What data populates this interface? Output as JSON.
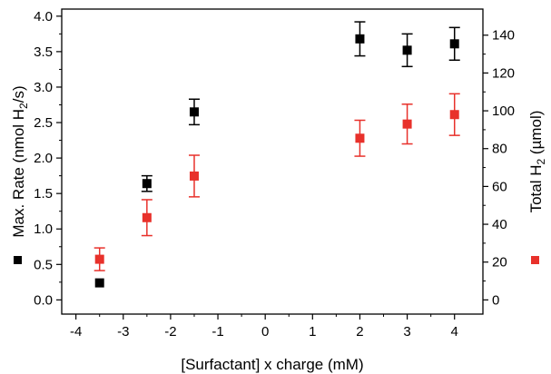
{
  "chart_data": {
    "type": "scatter",
    "xlabel": "[Surfactant] x charge (mM)",
    "ylabel_left": {
      "text": "Max. Rate (nmol H",
      "sub": "2",
      "tail": "/s)"
    },
    "ylabel_right": {
      "text": "Total H",
      "sub": "2",
      "tail": " (µmol)"
    },
    "xlim": [
      -4.3,
      4.6
    ],
    "ylim_left": [
      -0.2,
      4.1
    ],
    "ylim_right": [
      -7.5,
      153.8
    ],
    "x_ticks": [
      -4,
      -3,
      -2,
      -1,
      0,
      1,
      2,
      3,
      4
    ],
    "y_ticks_left": [
      0.0,
      0.5,
      1.0,
      1.5,
      2.0,
      2.5,
      3.0,
      3.5,
      4.0
    ],
    "y_tick_labels_left": [
      "0.0",
      "0.5",
      "1.0",
      "1.5",
      "2.0",
      "2.5",
      "3.0",
      "3.5",
      "4.0"
    ],
    "y_ticks_right": [
      0,
      20,
      40,
      60,
      80,
      100,
      120,
      140
    ],
    "grid": false,
    "series": [
      {
        "axis": "left",
        "color": "#000000",
        "marker": "square",
        "points": [
          {
            "x": -3.5,
            "y": 0.24,
            "err": 0.0
          },
          {
            "x": -2.5,
            "y": 1.64,
            "err": 0.11
          },
          {
            "x": -1.5,
            "y": 2.65,
            "err": 0.18
          },
          {
            "x": 2.0,
            "y": 3.68,
            "err": 0.24
          },
          {
            "x": 3.0,
            "y": 3.52,
            "err": 0.23
          },
          {
            "x": 4.0,
            "y": 3.61,
            "err": 0.23
          }
        ]
      },
      {
        "axis": "right",
        "color": "#e8312b",
        "marker": "square",
        "points": [
          {
            "x": -3.5,
            "y": 21.5,
            "err": 6
          },
          {
            "x": -2.5,
            "y": 43.5,
            "err": 9.5
          },
          {
            "x": -1.5,
            "y": 65.5,
            "err": 11
          },
          {
            "x": 2.0,
            "y": 85.5,
            "err": 9.5
          },
          {
            "x": 3.0,
            "y": 93.0,
            "err": 10.5
          },
          {
            "x": 4.0,
            "y": 98.0,
            "err": 11
          }
        ]
      }
    ]
  }
}
